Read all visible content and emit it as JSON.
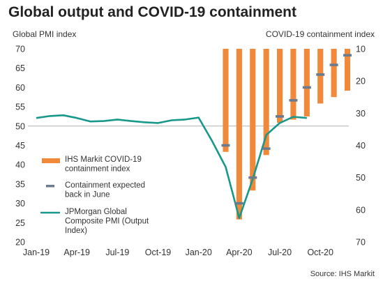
{
  "chart_data": {
    "type": "bar",
    "title": "Global output and COVID-19 containment",
    "source": "Source: IHS Markit",
    "x_tick_labels": [
      "Jan-19",
      "Apr-19",
      "Jul-19",
      "Oct-19",
      "Jan-20",
      "Apr-20",
      "Jul-20",
      "Oct-20"
    ],
    "left_axis": {
      "label": "Global PMI index",
      "ylim": [
        20,
        70
      ],
      "ticks": [
        "20",
        "25",
        "30",
        "35",
        "40",
        "45",
        "50",
        "55",
        "60",
        "65",
        "70"
      ]
    },
    "right_axis": {
      "label": "COVID-19 containment index",
      "ylim": [
        70,
        10
      ],
      "inverted": true,
      "ticks": [
        "10",
        "20",
        "30",
        "40",
        "50",
        "60",
        "70"
      ]
    },
    "reference_line": {
      "axis": "left",
      "value": 50,
      "color": "#b0b0b0"
    },
    "series": [
      {
        "name": "JPMorgan Global Composite PMI (Output Index)",
        "type": "line",
        "axis": "left",
        "color": "#17988a",
        "x": [
          "2019-01",
          "2019-02",
          "2019-03",
          "2019-04",
          "2019-05",
          "2019-06",
          "2019-07",
          "2019-08",
          "2019-09",
          "2019-10",
          "2019-11",
          "2019-12",
          "2020-01",
          "2020-02",
          "2020-03",
          "2020-04",
          "2020-05",
          "2020-06",
          "2020-07",
          "2020-08",
          "2020-09"
        ],
        "values": [
          52.1,
          52.6,
          52.8,
          52.1,
          51.2,
          51.3,
          51.7,
          51.3,
          51.0,
          50.8,
          51.5,
          51.7,
          52.2,
          46.1,
          39.4,
          26.2,
          36.3,
          47.7,
          50.8,
          52.4,
          52.1
        ]
      },
      {
        "name": "IHS Markit COVID-19 containment index",
        "type": "bar",
        "axis": "right",
        "color": "#f08a3a",
        "x": [
          "2020-03",
          "2020-04",
          "2020-05",
          "2020-06",
          "2020-07",
          "2020-08",
          "2020-09",
          "2020-10",
          "2020-11",
          "2020-12"
        ],
        "values": [
          42,
          63,
          54,
          43,
          33,
          32,
          31,
          27,
          25,
          23
        ]
      },
      {
        "name": "Containment expected back in June",
        "type": "marker",
        "axis": "right",
        "color": "#6b7b8f",
        "x": [
          "2020-03",
          "2020-04",
          "2020-05",
          "2020-06",
          "2020-07",
          "2020-08",
          "2020-09",
          "2020-10",
          "2020-11",
          "2020-12"
        ],
        "values": [
          40,
          58,
          50,
          41,
          31,
          26,
          22,
          18,
          15,
          12
        ]
      }
    ],
    "legend": {
      "placement": "left-middle",
      "entries": [
        {
          "series": 1,
          "line1": "IHS Markit COVID-19",
          "line2": "containment index"
        },
        {
          "series": 2,
          "line1": "Containment expected",
          "line2": "back in June"
        },
        {
          "series": 0,
          "line1": "JPMorgan Global",
          "line2": "Composite PMI (Output",
          "line3": "Index)"
        }
      ]
    }
  }
}
